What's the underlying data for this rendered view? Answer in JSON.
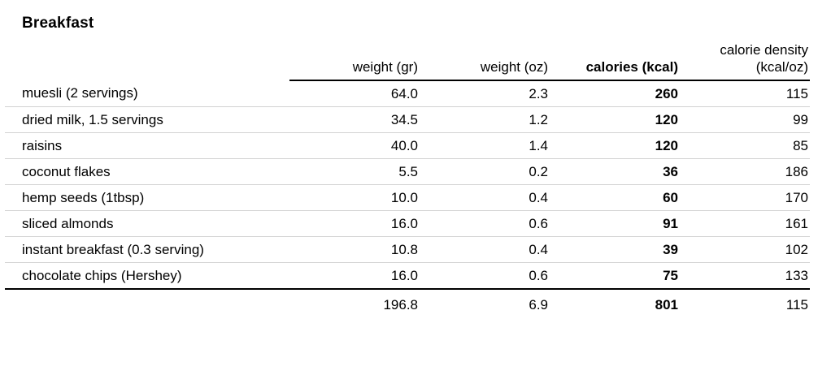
{
  "title": "Breakfast",
  "colors": {
    "background": "#ffffff",
    "text": "#000000",
    "row_divider": "#d2d2d2",
    "heavy_rule": "#000000"
  },
  "table": {
    "headers": {
      "name": "",
      "weight_gr": "weight (gr)",
      "weight_oz": "weight (oz)",
      "calories": "calories (kcal)",
      "calorie_density_line1": "calorie density",
      "calorie_density_line2": "(kcal/oz)"
    },
    "rows": [
      {
        "name": "muesli (2 servings)",
        "weight_gr": "64.0",
        "weight_oz": "2.3",
        "calories": "260",
        "calorie_density": "115"
      },
      {
        "name": "dried milk, 1.5 servings",
        "weight_gr": "34.5",
        "weight_oz": "1.2",
        "calories": "120",
        "calorie_density": "99"
      },
      {
        "name": "raisins",
        "weight_gr": "40.0",
        "weight_oz": "1.4",
        "calories": "120",
        "calorie_density": "85"
      },
      {
        "name": "coconut flakes",
        "weight_gr": "5.5",
        "weight_oz": "0.2",
        "calories": "36",
        "calorie_density": "186"
      },
      {
        "name": "hemp seeds (1tbsp)",
        "weight_gr": "10.0",
        "weight_oz": "0.4",
        "calories": "60",
        "calorie_density": "170"
      },
      {
        "name": "sliced almonds",
        "weight_gr": "16.0",
        "weight_oz": "0.6",
        "calories": "91",
        "calorie_density": "161"
      },
      {
        "name": "instant breakfast (0.3 serving)",
        "weight_gr": "10.8",
        "weight_oz": "0.4",
        "calories": "39",
        "calorie_density": "102"
      },
      {
        "name": "chocolate chips (Hershey)",
        "weight_gr": "16.0",
        "weight_oz": "0.6",
        "calories": "75",
        "calorie_density": "133"
      }
    ],
    "totals": {
      "name": "",
      "weight_gr": "196.8",
      "weight_oz": "6.9",
      "calories": "801",
      "calorie_density": "115"
    }
  }
}
